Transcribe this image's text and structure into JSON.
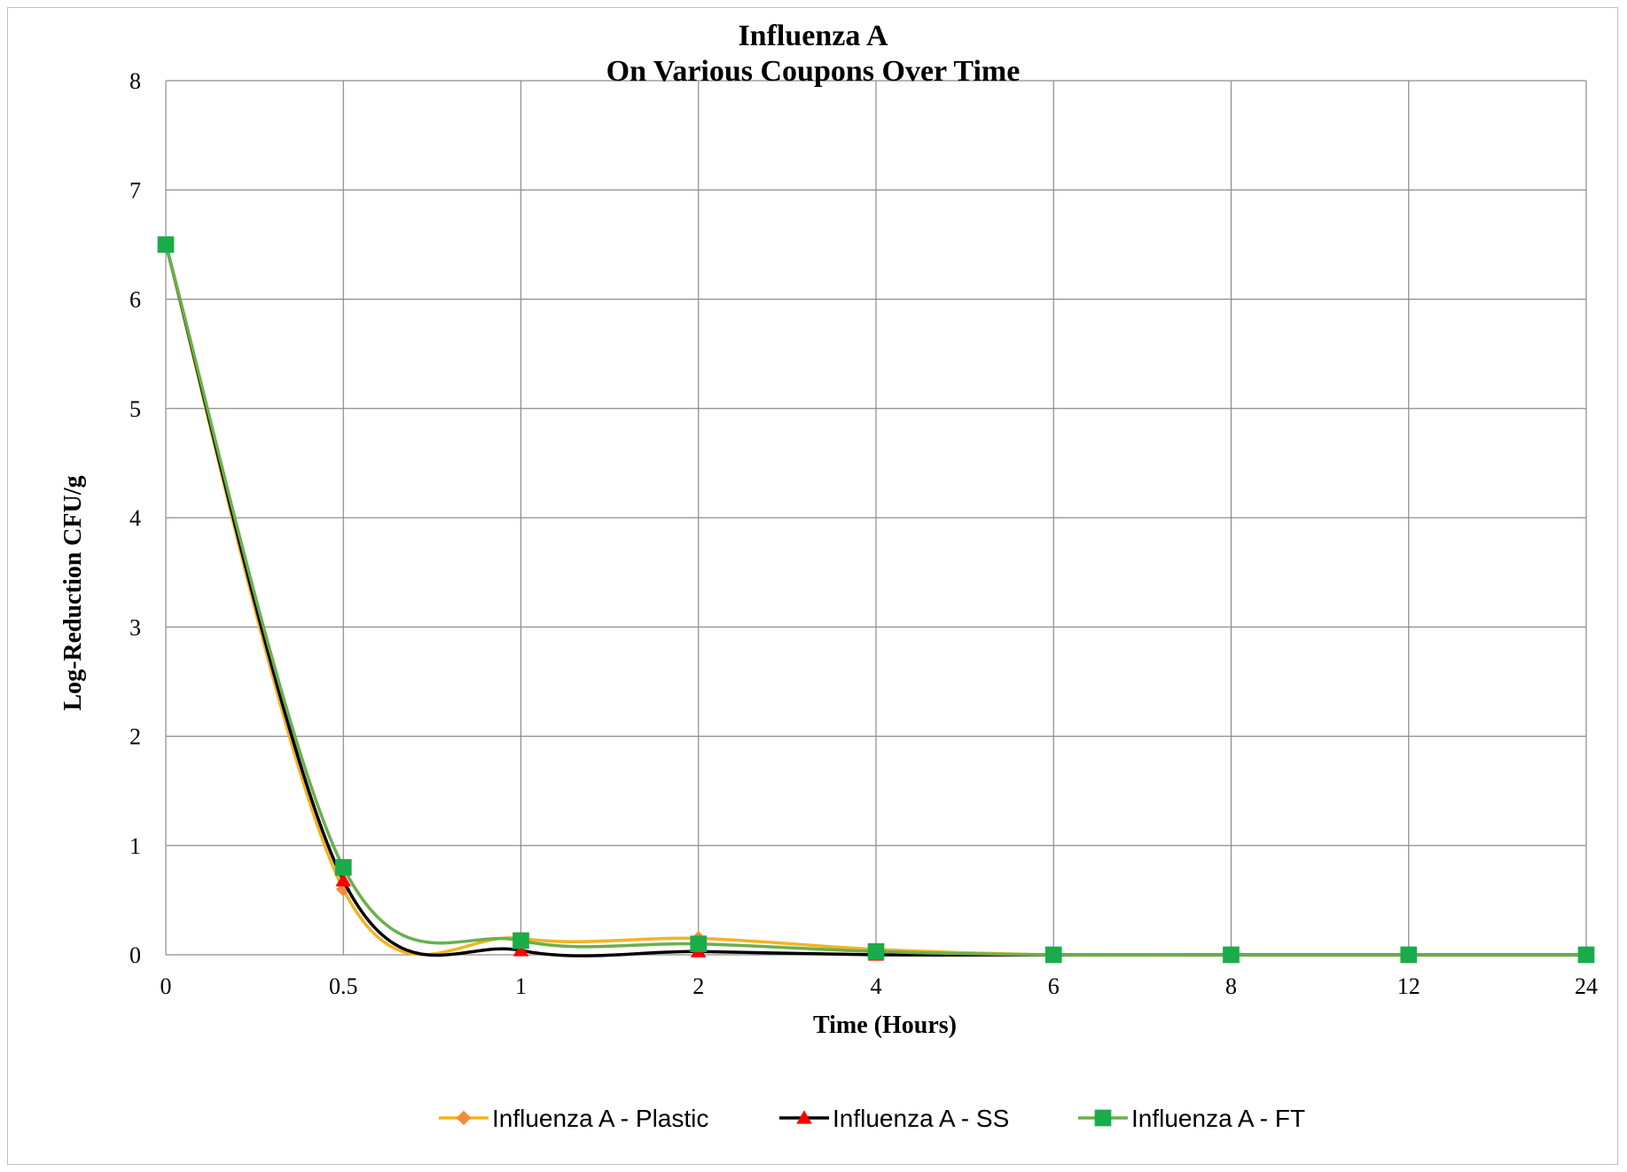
{
  "chart_data": {
    "type": "line",
    "title": "Influenza A",
    "subtitle": "On Various Coupons Over Time",
    "xlabel": "Time (Hours)",
    "ylabel": "Log-Reduction CFU/g",
    "categories": [
      "0",
      "0.5",
      "1",
      "2",
      "4",
      "6",
      "8",
      "12",
      "24"
    ],
    "ylim": [
      0,
      8
    ],
    "yticks": [
      "0",
      "1",
      "2",
      "3",
      "4",
      "5",
      "6",
      "7",
      "8"
    ],
    "grid": true,
    "legend_position": "bottom",
    "series": [
      {
        "name": "Influenza A - Plastic",
        "line_color": "#f5b321",
        "marker_color": "#f08c3a",
        "marker": "diamond",
        "values": [
          6.5,
          0.6,
          0.15,
          0.15,
          0.05,
          0,
          0,
          0,
          0
        ]
      },
      {
        "name": "Influenza A - SS",
        "line_color": "#000000",
        "marker_color": "#ff0000",
        "marker": "triangle",
        "values": [
          6.5,
          0.68,
          0.04,
          0.03,
          0.0,
          0,
          0,
          0,
          0
        ]
      },
      {
        "name": "Influenza A - FT",
        "line_color": "#6ab04c",
        "marker_color": "#1aac4a",
        "marker": "square",
        "values": [
          6.5,
          0.8,
          0.13,
          0.1,
          0.03,
          0,
          0,
          0,
          0
        ]
      }
    ]
  }
}
